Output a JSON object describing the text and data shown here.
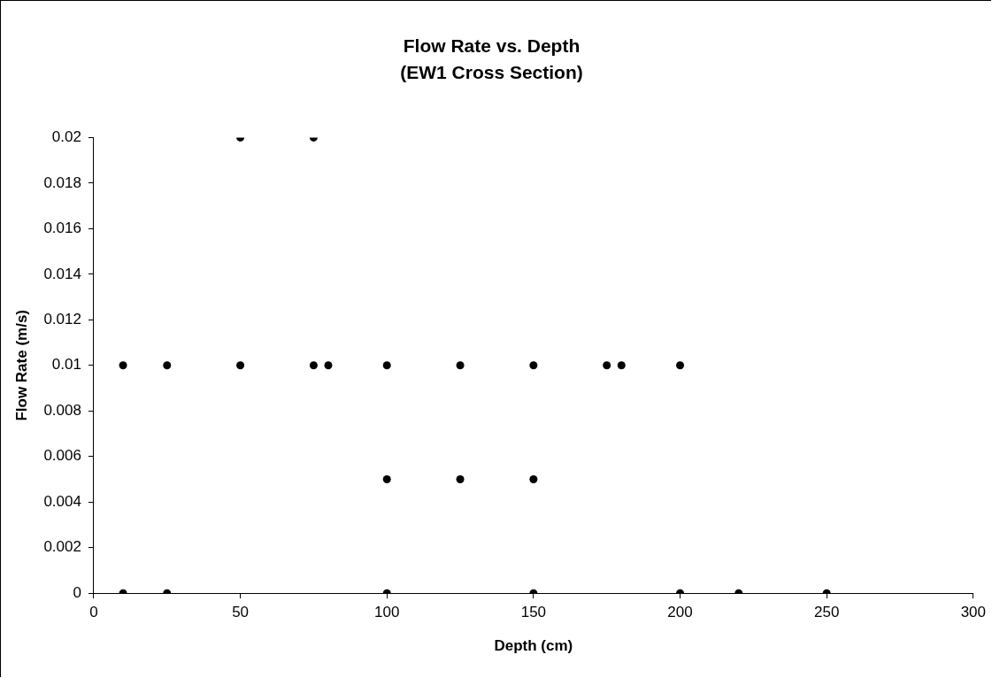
{
  "chart_data": {
    "type": "scatter",
    "title": "Flow Rate vs. Depth",
    "subtitle": "(EW1 Cross Section)",
    "xlabel": "Depth (cm)",
    "ylabel": "Flow Rate (m/s)",
    "x": [
      10,
      25,
      100,
      150,
      200,
      220,
      250,
      10,
      25,
      50,
      75,
      80,
      100,
      125,
      150,
      175,
      180,
      200,
      100,
      125,
      150,
      50,
      75
    ],
    "values": [
      0,
      0,
      0,
      0,
      0,
      0,
      0,
      0.01,
      0.01,
      0.01,
      0.01,
      0.01,
      0.01,
      0.01,
      0.01,
      0.01,
      0.01,
      0.01,
      0.005,
      0.005,
      0.005,
      0.02,
      0.02
    ],
    "color": "#000000",
    "marker": "circle",
    "grid": false,
    "legend": false,
    "xlim": [
      0,
      300
    ],
    "xticks": [
      0,
      50,
      100,
      150,
      200,
      250,
      300
    ],
    "ylim": [
      0,
      0.02
    ],
    "yticks": [
      0,
      0.002,
      0.004,
      0.006,
      0.008,
      0.01,
      0.012,
      0.014,
      0.016,
      0.018,
      0.02
    ]
  }
}
